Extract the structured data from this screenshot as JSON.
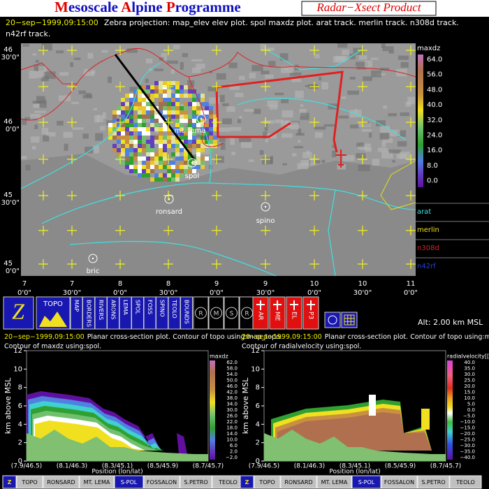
{
  "header": {
    "title_parts": [
      "M",
      "esoscale ",
      "A",
      "lpine ",
      "P",
      "rogramme"
    ],
    "product": "Radar−Xsect Product",
    "timestamp": "20−sep−1999,09:15:00",
    "description": "Zebra projection: map_elev elev plot.  spol maxdz plot.   arat track.   merlin track.   n308d track.",
    "description_line2": "n42rf track."
  },
  "map": {
    "lat_labels": [
      {
        "deg": "46",
        "min": "30'0\""
      },
      {
        "deg": "46",
        "min": "0'0\""
      },
      {
        "deg": "45",
        "min": "30'0\""
      },
      {
        "deg": "45",
        "min": "0'0\""
      }
    ],
    "lon_labels": [
      {
        "deg": "7",
        "min": "0'0\""
      },
      {
        "deg": "7",
        "min": "30'0\""
      },
      {
        "deg": "8",
        "min": "0'0\""
      },
      {
        "deg": "8",
        "min": "30'0\""
      },
      {
        "deg": "9",
        "min": "0'0\""
      },
      {
        "deg": "9",
        "min": "30'0\""
      },
      {
        "deg": "10",
        "min": "0'0\""
      },
      {
        "deg": "10",
        "min": "30'0\""
      },
      {
        "deg": "11",
        "min": "0'0\""
      }
    ],
    "stations": [
      "mt. lema",
      "spol",
      "ronsard",
      "spino",
      "bric"
    ],
    "colorbar_title": "maxdz",
    "colorbar_labels": [
      "64.0",
      "56.0",
      "48.0",
      "40.0",
      "32.0",
      "24.0",
      "16.0",
      "8.0",
      "0.0"
    ],
    "tracks": [
      "arat",
      "merlin",
      "n308d",
      "n42rf"
    ]
  },
  "toolbar": {
    "logo": "Z",
    "topo": "TOPO",
    "buttons": [
      "MAP",
      "BORDERS",
      "RIVERS",
      "ARONS",
      "LEMA",
      "SPOL",
      "FOSS",
      "SPINO",
      "TEOLO",
      "BOUNDS"
    ],
    "radar_buttons": [
      "R",
      "M",
      "S",
      "R"
    ],
    "aircraft_buttons": [
      "AR",
      "ME",
      "EL",
      "P3"
    ],
    "altitude": "Alt: 2.00 km MSL"
  },
  "panels": [
    {
      "timestamp": "20−sep−1999,09:15:00",
      "line1": "Planar cross-section plot.  Contour of topo using:map_topo.",
      "line2": "Contour of maxdz using:spol.",
      "yaxis_label": "km above MSL",
      "yticks": [
        "0",
        "2",
        "4",
        "6",
        "8",
        "10",
        "12"
      ],
      "xticks": [
        "(7.9/46.5)",
        "(8.1/46.3)",
        "(8.3/45.1)",
        "(8.5/45.9)",
        "(8.7/45.7)"
      ],
      "xaxis_label": "Position (lon/lat)",
      "colorbar_title": "maxdz",
      "colorbar_labels": [
        "62.0",
        "58.0",
        "54.0",
        "50.0",
        "46.0",
        "42.0",
        "38.0",
        "34.0",
        "30.0",
        "26.0",
        "22.0",
        "18.0",
        "14.0",
        "10.0",
        "6.0",
        "2.0",
        "−2.0"
      ],
      "buttons": [
        "Z",
        "TOPO",
        "RONSARD",
        "MT. LEMA",
        "S-POL",
        "FOSSALON",
        "S.PETRO",
        "TEOLO"
      ]
    },
    {
      "timestamp": "20−sep−1999,09:15:00",
      "line1": "Planar cross-section plot.  Contour of topo using:map_topo.",
      "line2": "Contour of radialvelocity using:spol.",
      "yaxis_label": "km above MSL",
      "yticks": [
        "0",
        "2",
        "4",
        "6",
        "8",
        "10",
        "12"
      ],
      "xticks": [
        "(7.9/46.5)",
        "(8.1/46.3)",
        "(8.3/45.1)",
        "(8.5/45.9)",
        "(8.7/45.7)"
      ],
      "xaxis_label": "Position (lon/lat)",
      "colorbar_title": "radialvelocity[[",
      "colorbar_labels": [
        "40.0",
        "35.0",
        "30.0",
        "25.0",
        "20.0",
        "15.0",
        "10.0",
        "5.0",
        "0.0",
        "−5.0",
        "−10.0",
        "−15.0",
        "−20.0",
        "−25.0",
        "−30.0",
        "−35.0",
        "−40.0"
      ],
      "buttons": [
        "Z",
        "TOPO",
        "RONSARD",
        "MT. LEMA",
        "S-POL",
        "FOSSALON",
        "S.PETRO",
        "TEOLO"
      ]
    }
  ]
}
